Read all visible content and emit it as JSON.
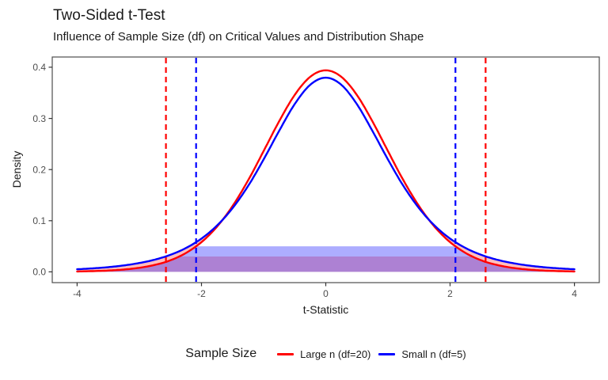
{
  "header": {
    "title": "Two-Sided t-Test",
    "subtitle": "Influence of Sample Size (df) on Critical Values and Distribution Shape"
  },
  "chart_data": {
    "type": "line",
    "title": "Two-Sided t-Test",
    "subtitle": "Influence of Sample Size (df) on Critical Values and Distribution Shape",
    "xlabel": "t-Statistic",
    "ylabel": "Density",
    "xlim": [
      -4.4,
      4.4
    ],
    "ylim": [
      -0.021,
      0.42
    ],
    "grid": false,
    "panel_border": true,
    "x_ticks": [
      {
        "label": "-4",
        "value": -4
      },
      {
        "label": "-2",
        "value": -2
      },
      {
        "label": "0",
        "value": 0
      },
      {
        "label": "2",
        "value": 2
      },
      {
        "label": "4",
        "value": 4
      }
    ],
    "y_ticks": [
      {
        "label": "0.0",
        "value": 0.0
      },
      {
        "label": "0.1",
        "value": 0.1
      },
      {
        "label": "0.2",
        "value": 0.2
      },
      {
        "label": "0.3",
        "value": 0.3
      },
      {
        "label": "0.4",
        "value": 0.4
      }
    ],
    "x": [
      -4,
      -3.75,
      -3.5,
      -3.25,
      -3,
      -2.75,
      -2.5,
      -2.25,
      -2,
      -1.75,
      -1.5,
      -1.25,
      -1,
      -0.75,
      -0.5,
      -0.25,
      0,
      0.25,
      0.5,
      0.75,
      1,
      1.25,
      1.5,
      1.75,
      2,
      2.25,
      2.5,
      2.75,
      3,
      3.25,
      3.5,
      3.75,
      4
    ],
    "series": [
      {
        "name": "Large n (df=20)",
        "df": 20,
        "color": "#FF0000",
        "values": [
          0.0008,
          0.0015,
          0.0026,
          0.0046,
          0.008,
          0.0136,
          0.0226,
          0.0369,
          0.0581,
          0.0883,
          0.1286,
          0.1788,
          0.2361,
          0.2944,
          0.3458,
          0.3813,
          0.394,
          0.3813,
          0.3458,
          0.2944,
          0.2361,
          0.1788,
          0.1286,
          0.0883,
          0.0581,
          0.0369,
          0.0226,
          0.0136,
          0.008,
          0.0046,
          0.0026,
          0.0015,
          0.0008
        ]
      },
      {
        "name": "Small n (df=5)",
        "df": 5,
        "color": "#0000FF",
        "values": [
          0.0051,
          0.0069,
          0.0092,
          0.0126,
          0.0173,
          0.0239,
          0.0333,
          0.0466,
          0.0651,
          0.0905,
          0.1245,
          0.1678,
          0.2197,
          0.2757,
          0.3279,
          0.3657,
          0.3796,
          0.3657,
          0.3279,
          0.2757,
          0.2197,
          0.1678,
          0.1245,
          0.0905,
          0.0651,
          0.0466,
          0.0333,
          0.0239,
          0.0173,
          0.0126,
          0.0092,
          0.0069,
          0.0051
        ]
      }
    ],
    "critical_lines": [
      {
        "color": "#FF0000",
        "style": "dashed",
        "x": [
          -2.571,
          2.571
        ]
      },
      {
        "color": "#0000FF",
        "style": "dashed",
        "x": [
          -2.086,
          2.086
        ]
      }
    ],
    "shaded_regions": [
      {
        "name": "blue-band",
        "description": "area under df=20 curve capped at density 0.05, spans +/-2.086 flat",
        "cap": 0.05,
        "fill": "rgba(0,0,255,0.32)"
      },
      {
        "name": "red-band",
        "description": "area under df=20 curve capped at density 0.03, spans +/-2.571 flat",
        "cap": 0.03,
        "fill": "rgba(255,0,0,0.25)"
      },
      {
        "name": "tail-ribbon",
        "description": "area between df=5 and df=20 curves where df=5 curve is higher (tails)",
        "fill": "rgba(255,0,0,0.25)"
      }
    ],
    "legend": {
      "title": "Sample Size",
      "position": "bottom",
      "entries": [
        {
          "label": "Large n (df=20)",
          "color": "#FF0000"
        },
        {
          "label": "Small n (df=5)",
          "color": "#0000FF"
        }
      ]
    }
  }
}
